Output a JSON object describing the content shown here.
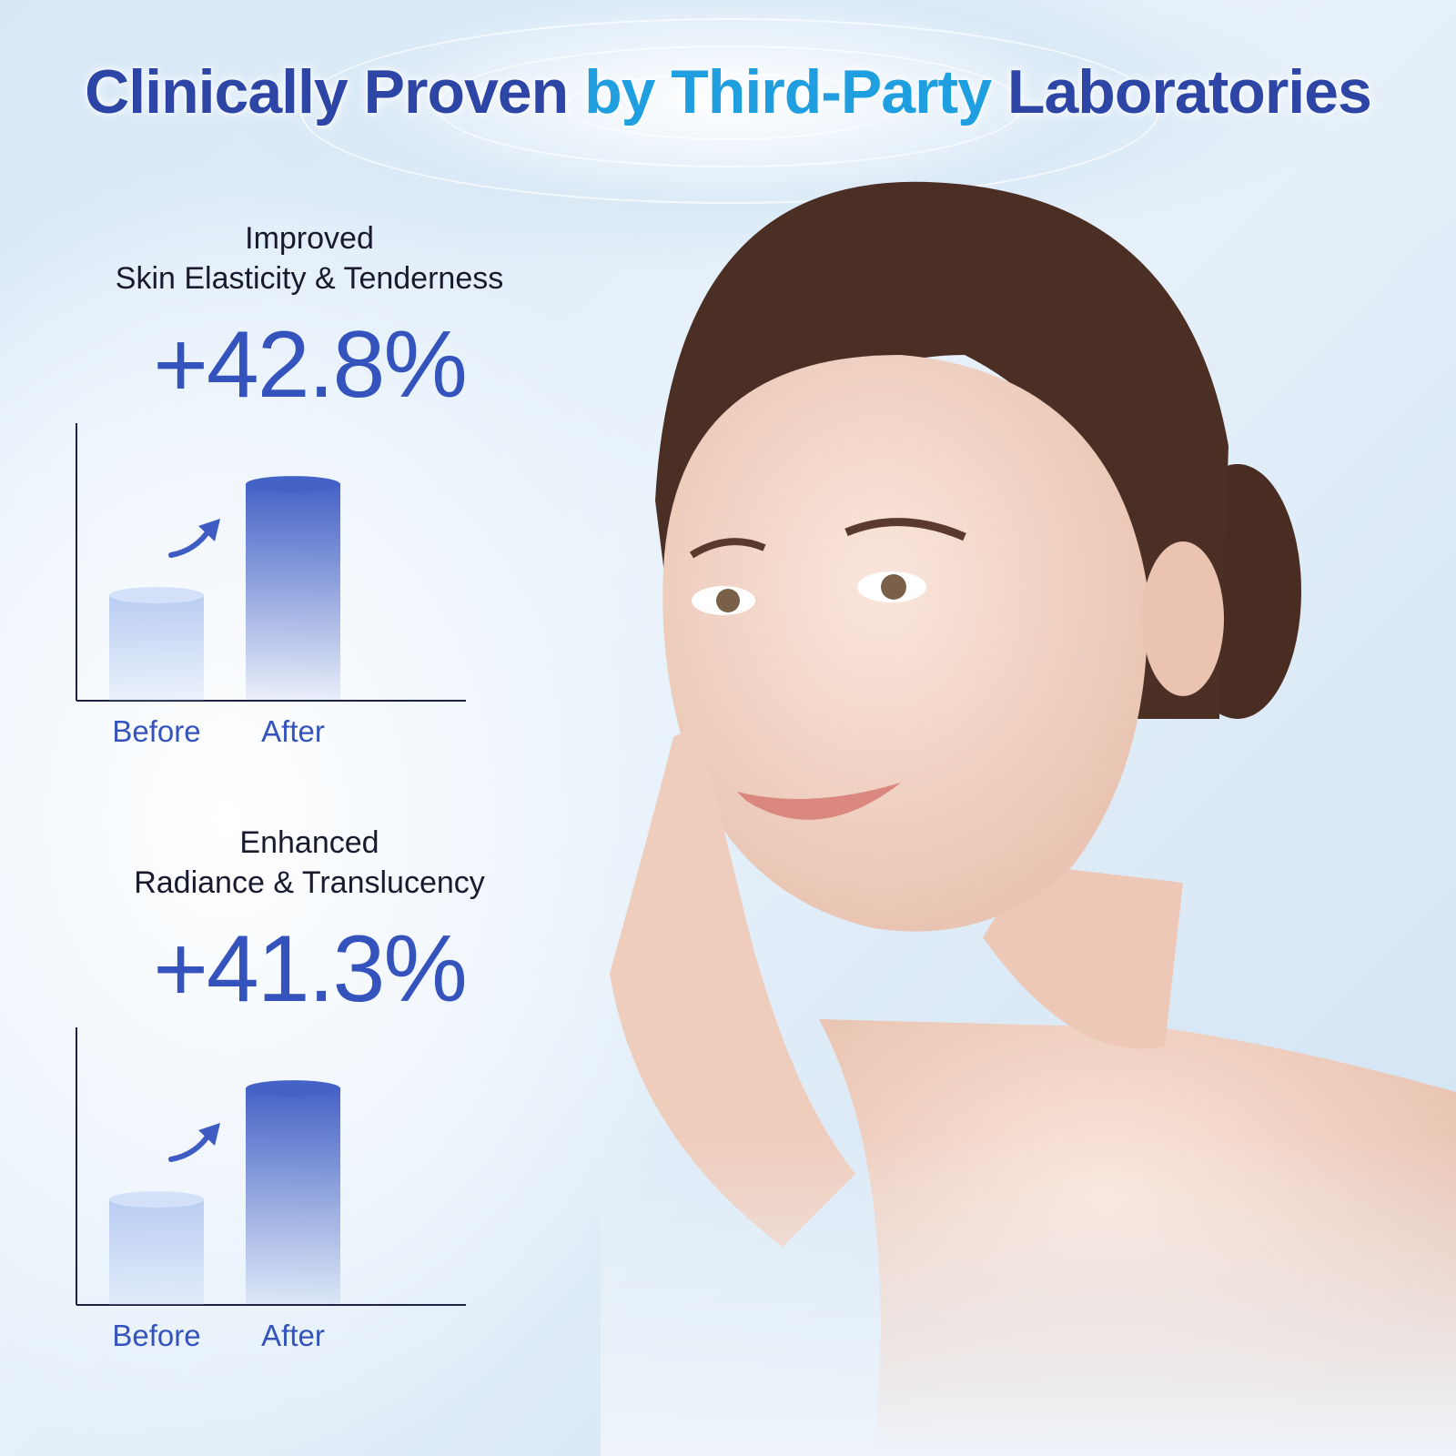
{
  "title": {
    "part1": "Clinically Proven ",
    "part2": "by Third-Party ",
    "part3": "Laboratories"
  },
  "colors": {
    "title": "#2d46a6",
    "accent": "#1f9fe0",
    "bar_dark": "#4563c6",
    "bar_light": "#b9cdf2",
    "percent": "#3553bd"
  },
  "metrics": [
    {
      "line1": "Improved",
      "line2": "Skin Elasticity & Tenderness",
      "percent": "+42.8%"
    },
    {
      "line1": "Enhanced",
      "line2": "Radiance & Translucency",
      "percent": "+41.3%"
    }
  ],
  "chart_data": [
    {
      "type": "bar",
      "categories": [
        "Before",
        "After"
      ],
      "values": [
        0.38,
        0.78
      ],
      "ylim": [
        0,
        1
      ],
      "grid": false,
      "annotation": "arrow-up-right-icon"
    },
    {
      "type": "bar",
      "categories": [
        "Before",
        "After"
      ],
      "values": [
        0.38,
        0.78
      ],
      "ylim": [
        0,
        1
      ],
      "grid": false,
      "annotation": "arrow-up-right-icon"
    }
  ]
}
